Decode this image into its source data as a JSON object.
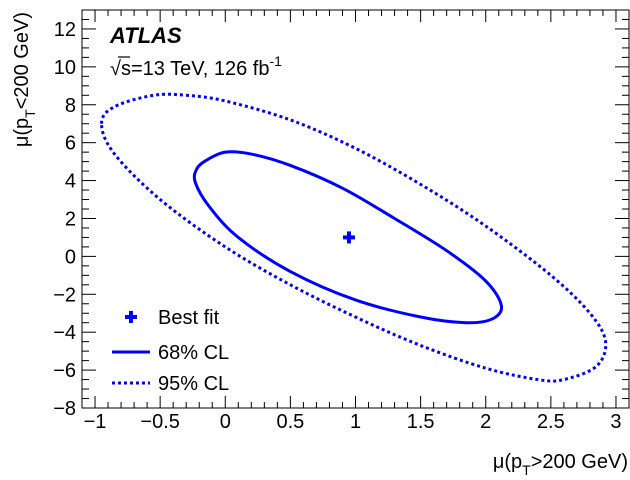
{
  "chart_data": {
    "type": "scatter",
    "title": "",
    "experiment_label": "ATLAS",
    "energy_label_parts": {
      "sqrt": "√",
      "text": "s=13 TeV, 126 fb",
      "exponent": "-1"
    },
    "xlabel_parts": {
      "pre": "μ(p",
      "sub": "T",
      "post": ">200 GeV)"
    },
    "ylabel_parts": {
      "pre": "μ(p",
      "sub": "T",
      "post": "<200 GeV)"
    },
    "xlim": [
      -1.1,
      3.1
    ],
    "ylim": [
      -8,
      13
    ],
    "x_ticks": [
      -1,
      -0.5,
      0,
      0.5,
      1,
      1.5,
      2,
      2.5,
      3
    ],
    "x_tick_labels": [
      "−1",
      "−0.5",
      "0",
      "0.5",
      "1",
      "1.5",
      "2",
      "2.5",
      "3"
    ],
    "y_ticks": [
      -8,
      -6,
      -4,
      -2,
      0,
      2,
      4,
      6,
      8,
      10,
      12
    ],
    "y_tick_labels": [
      "−8",
      "−6",
      "−4",
      "−2",
      "0",
      "2",
      "4",
      "6",
      "8",
      "10",
      "12"
    ],
    "grid": false,
    "legend_position": "bottom-left",
    "best_fit": {
      "x": 0.95,
      "y": 1.0
    },
    "series": [
      {
        "name": "Best fit",
        "style": "marker",
        "color": "#0000ff"
      },
      {
        "name": "68% CL",
        "style": "solid",
        "color": "#0000ff",
        "points": [
          [
            -0.22,
            4.6
          ],
          [
            -0.15,
            5.05
          ],
          [
            0.0,
            5.5
          ],
          [
            0.2,
            5.4
          ],
          [
            0.5,
            4.8
          ],
          [
            0.9,
            3.6
          ],
          [
            1.3,
            2.0
          ],
          [
            1.7,
            0.3
          ],
          [
            2.0,
            -1.3
          ],
          [
            2.12,
            -2.6
          ],
          [
            2.05,
            -3.3
          ],
          [
            1.85,
            -3.5
          ],
          [
            1.5,
            -3.2
          ],
          [
            1.0,
            -2.3
          ],
          [
            0.5,
            -0.8
          ],
          [
            0.1,
            1.0
          ],
          [
            -0.12,
            2.6
          ],
          [
            -0.23,
            3.9
          ],
          [
            -0.22,
            4.6
          ]
        ]
      },
      {
        "name": "95% CL",
        "style": "dotted",
        "color": "#0000ff",
        "points": [
          [
            -0.95,
            7.0
          ],
          [
            -0.85,
            7.9
          ],
          [
            -0.55,
            8.5
          ],
          [
            -0.3,
            8.5
          ],
          [
            0.0,
            8.2
          ],
          [
            0.5,
            7.2
          ],
          [
            1.0,
            5.7
          ],
          [
            1.5,
            3.8
          ],
          [
            2.0,
            1.6
          ],
          [
            2.5,
            -1.0
          ],
          [
            2.8,
            -3.0
          ],
          [
            2.92,
            -4.5
          ],
          [
            2.85,
            -5.8
          ],
          [
            2.6,
            -6.5
          ],
          [
            2.4,
            -6.5
          ],
          [
            2.0,
            -5.9
          ],
          [
            1.5,
            -4.7
          ],
          [
            1.0,
            -3.2
          ],
          [
            0.5,
            -1.5
          ],
          [
            0.0,
            0.5
          ],
          [
            -0.5,
            3.0
          ],
          [
            -0.85,
            5.4
          ],
          [
            -0.95,
            7.0
          ]
        ]
      }
    ]
  }
}
